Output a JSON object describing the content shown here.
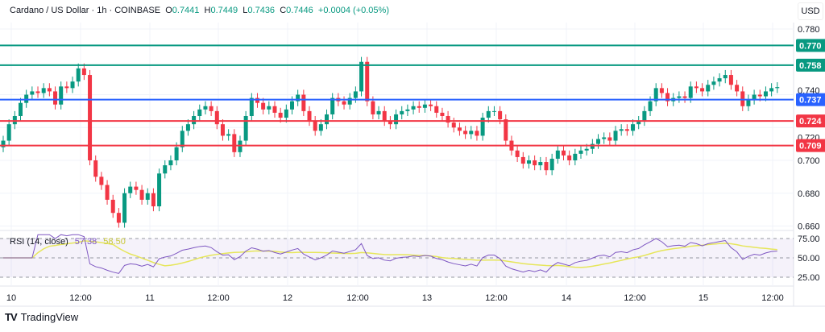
{
  "legend": {
    "symbol": "Cardano / US Dollar · 1h · COINBASE",
    "o_label": "O",
    "o": "0.7441",
    "h_label": "H",
    "h": "0.7449",
    "l_label": "L",
    "l": "0.7436",
    "c_label": "C",
    "c": "0.7446",
    "change": "+0.0004 (+0.05%)"
  },
  "currency": "USD",
  "brand": "TradingView",
  "colors": {
    "up": "#089981",
    "down": "#f23645",
    "resistance": "#089981",
    "pivot": "#2962ff",
    "support": "#f23645",
    "rsi": "#7e57c2",
    "rsi_ma": "#e6e65a"
  },
  "chart_data": [
    {
      "type": "candlestick",
      "ylim": [
        0.655,
        0.785
      ],
      "y_ticks": [
        "0.780",
        "0.740",
        "0.720",
        "0.700",
        "0.680",
        "0.660"
      ],
      "x_ticks": [
        "10",
        "12:00",
        "11",
        "12:00",
        "12",
        "12:00",
        "13",
        "12:00",
        "14",
        "12:00",
        "15",
        "12:00"
      ],
      "close": [
        0.712,
        0.722,
        0.727,
        0.735,
        0.74,
        0.742,
        0.741,
        0.744,
        0.742,
        0.734,
        0.745,
        0.744,
        0.748,
        0.756,
        0.752,
        0.7,
        0.69,
        0.685,
        0.676,
        0.668,
        0.662,
        0.68,
        0.684,
        0.682,
        0.676,
        0.68,
        0.672,
        0.692,
        0.697,
        0.7,
        0.708,
        0.718,
        0.722,
        0.727,
        0.731,
        0.733,
        0.73,
        0.722,
        0.715,
        0.716,
        0.705,
        0.712,
        0.727,
        0.738,
        0.735,
        0.731,
        0.733,
        0.729,
        0.726,
        0.731,
        0.736,
        0.74,
        0.73,
        0.724,
        0.718,
        0.722,
        0.728,
        0.738,
        0.736,
        0.734,
        0.738,
        0.742,
        0.76,
        0.736,
        0.728,
        0.73,
        0.724,
        0.722,
        0.728,
        0.73,
        0.731,
        0.733,
        0.732,
        0.734,
        0.733,
        0.729,
        0.727,
        0.723,
        0.72,
        0.718,
        0.716,
        0.718,
        0.715,
        0.726,
        0.73,
        0.73,
        0.725,
        0.712,
        0.706,
        0.702,
        0.698,
        0.7,
        0.697,
        0.699,
        0.694,
        0.701,
        0.706,
        0.703,
        0.7,
        0.704,
        0.706,
        0.707,
        0.71,
        0.713,
        0.714,
        0.712,
        0.718,
        0.719,
        0.718,
        0.722,
        0.724,
        0.73,
        0.736,
        0.744,
        0.741,
        0.736,
        0.738,
        0.739,
        0.738,
        0.745,
        0.744,
        0.742,
        0.746,
        0.748,
        0.75,
        0.752,
        0.746,
        0.742,
        0.733,
        0.737,
        0.74,
        0.739,
        0.742,
        0.744,
        0.7446
      ],
      "levels": [
        {
          "value": "0.770",
          "kind": "resistance"
        },
        {
          "value": "0.758",
          "kind": "resistance"
        },
        {
          "value": "0.737",
          "kind": "pivot"
        },
        {
          "value": "0.724",
          "kind": "support"
        },
        {
          "value": "0.709",
          "kind": "support"
        }
      ]
    },
    {
      "type": "line",
      "title": "RSI (14, close)",
      "rsi_last": "57.38",
      "rsi_ma_last": "58.50",
      "y_ticks": [
        "75.00",
        "50.00",
        "25.00"
      ],
      "ylim": [
        15,
        85
      ]
    }
  ]
}
